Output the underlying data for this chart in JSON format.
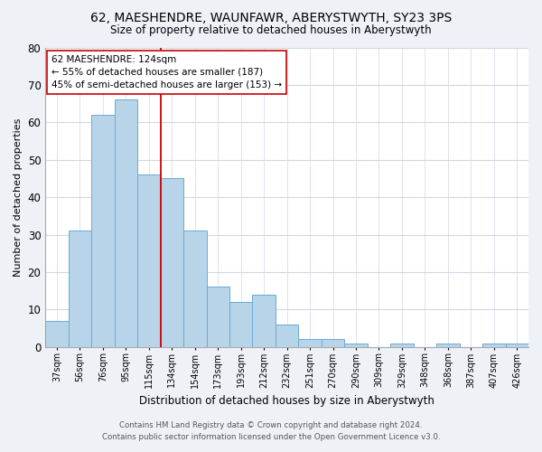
{
  "title": "62, MAESHENDRE, WAUNFAWR, ABERYSTWYTH, SY23 3PS",
  "subtitle": "Size of property relative to detached houses in Aberystwyth",
  "xlabel": "Distribution of detached houses by size in Aberystwyth",
  "ylabel": "Number of detached properties",
  "bin_labels": [
    "37sqm",
    "56sqm",
    "76sqm",
    "95sqm",
    "115sqm",
    "134sqm",
    "154sqm",
    "173sqm",
    "193sqm",
    "212sqm",
    "232sqm",
    "251sqm",
    "270sqm",
    "290sqm",
    "309sqm",
    "329sqm",
    "348sqm",
    "368sqm",
    "387sqm",
    "407sqm",
    "426sqm"
  ],
  "bar_heights": [
    7,
    31,
    62,
    66,
    46,
    45,
    31,
    16,
    12,
    14,
    6,
    2,
    2,
    1,
    0,
    1,
    0,
    1,
    0,
    1,
    1
  ],
  "bar_color": "#b8d4e8",
  "bar_edge_color": "#6aaad4",
  "vline_x_idx": 4,
  "vline_color": "#cc0000",
  "annotation_line1": "62 MAESHENDRE: 124sqm",
  "annotation_line2": "← 55% of detached houses are smaller (187)",
  "annotation_line3": "45% of semi-detached houses are larger (153) →",
  "annotation_box_color": "#ffffff",
  "annotation_box_edge": "#cc0000",
  "ylim": [
    0,
    80
  ],
  "yticks": [
    0,
    10,
    20,
    30,
    40,
    50,
    60,
    70,
    80
  ],
  "footer_line1": "Contains HM Land Registry data © Crown copyright and database right 2024.",
  "footer_line2": "Contains public sector information licensed under the Open Government Licence v3.0.",
  "background_color": "#eef2f7",
  "plot_background_color": "#ffffff",
  "grid_color": "#d0d8e4"
}
